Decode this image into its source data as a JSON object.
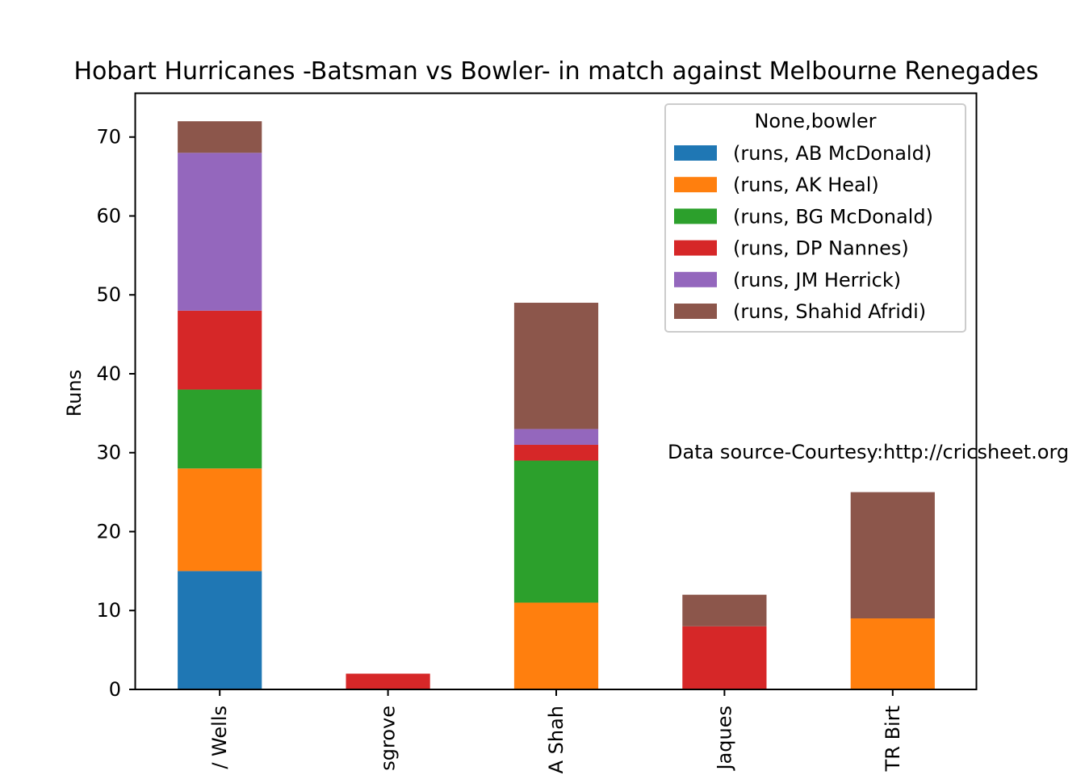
{
  "chart_data": {
    "type": "bar",
    "stacked": true,
    "title": "Hobart Hurricanes -Batsman vs Bowler- in match against Melbourne Renegades",
    "xlabel": "",
    "ylabel": "Runs",
    "ylim": [
      0,
      75.6
    ],
    "yticks": [
      0,
      10,
      20,
      30,
      40,
      50,
      60,
      70
    ],
    "categories": [
      "JW Wells",
      "PJ Musgrove",
      "A Shah",
      "PA Jaques",
      "TR Birt"
    ],
    "category_labels_visible": [
      "/ Wells",
      "sgrove",
      "A Shah",
      "Jaques",
      "TR Birt"
    ],
    "legend": {
      "title": "None,bowler",
      "position": "upper-right"
    },
    "series": [
      {
        "name": "(runs, AB McDonald)",
        "color": "#1f77b4",
        "values": [
          15,
          0,
          0,
          0,
          0
        ]
      },
      {
        "name": "(runs, AK Heal)",
        "color": "#ff7f0e",
        "values": [
          13,
          0,
          11,
          0,
          9
        ]
      },
      {
        "name": "(runs, BG McDonald)",
        "color": "#2ca02c",
        "values": [
          10,
          0,
          18,
          0,
          0
        ]
      },
      {
        "name": "(runs, DP Nannes)",
        "color": "#d62728",
        "values": [
          10,
          2,
          2,
          8,
          0
        ]
      },
      {
        "name": "(runs, JM Herrick)",
        "color": "#9467bd",
        "values": [
          20,
          0,
          2,
          0,
          0
        ]
      },
      {
        "name": "(runs, Shahid Afridi)",
        "color": "#8c564b",
        "values": [
          4,
          0,
          16,
          4,
          16
        ]
      }
    ],
    "annotation": "Data source-Courtesy:http://cricsheet.org"
  }
}
